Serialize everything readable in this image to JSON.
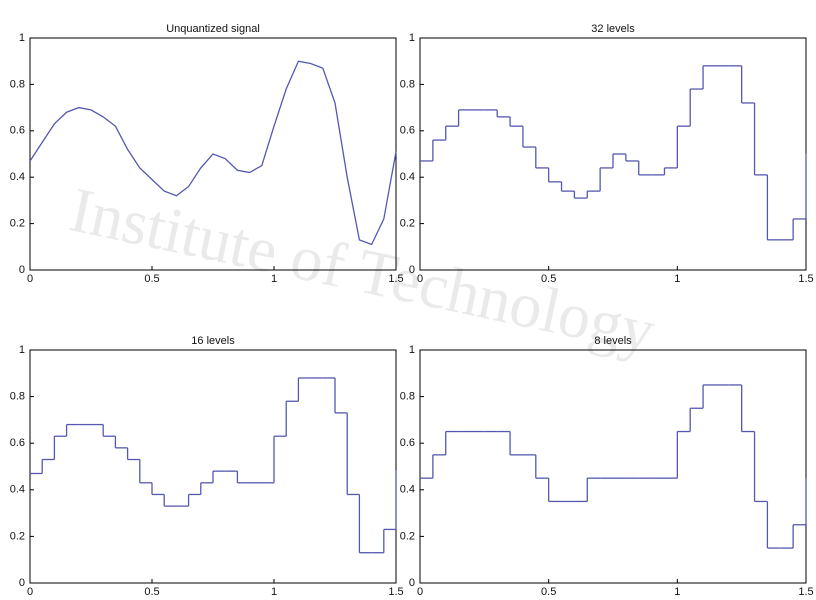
{
  "watermark": "Institute of Technology",
  "chart_data": [
    {
      "type": "line",
      "title": "Unquantized signal",
      "color": "#5558b0",
      "x": [
        0,
        0.05,
        0.1,
        0.15,
        0.2,
        0.25,
        0.3,
        0.35,
        0.4,
        0.45,
        0.5,
        0.55,
        0.6,
        0.65,
        0.7,
        0.75,
        0.8,
        0.85,
        0.9,
        0.95,
        1,
        1.05,
        1.1,
        1.15,
        1.2,
        1.25,
        1.3,
        1.35,
        1.4,
        1.45,
        1.5
      ],
      "values": [
        0.47,
        0.55,
        0.63,
        0.68,
        0.7,
        0.69,
        0.66,
        0.62,
        0.52,
        0.44,
        0.39,
        0.34,
        0.32,
        0.36,
        0.44,
        0.5,
        0.48,
        0.43,
        0.42,
        0.45,
        0.62,
        0.78,
        0.9,
        0.89,
        0.87,
        0.72,
        0.4,
        0.13,
        0.11,
        0.22,
        0.51
      ],
      "xlim": [
        0,
        1.5
      ],
      "ylim": [
        0,
        1
      ],
      "xticks": [
        0,
        0.5,
        1,
        1.5
      ],
      "yticks": [
        0,
        0.2,
        0.4,
        0.6,
        0.8,
        1
      ]
    },
    {
      "type": "step",
      "title": "32 levels",
      "color": "#5558b0",
      "x": [
        0,
        0.05,
        0.1,
        0.15,
        0.2,
        0.25,
        0.3,
        0.35,
        0.4,
        0.45,
        0.5,
        0.55,
        0.6,
        0.65,
        0.7,
        0.75,
        0.8,
        0.85,
        0.9,
        0.95,
        1,
        1.05,
        1.1,
        1.15,
        1.2,
        1.25,
        1.3,
        1.35,
        1.4,
        1.45,
        1.5
      ],
      "values": [
        0.47,
        0.56,
        0.62,
        0.69,
        0.69,
        0.69,
        0.66,
        0.62,
        0.53,
        0.44,
        0.38,
        0.34,
        0.31,
        0.34,
        0.44,
        0.5,
        0.47,
        0.41,
        0.41,
        0.44,
        0.62,
        0.78,
        0.88,
        0.88,
        0.88,
        0.72,
        0.41,
        0.13,
        0.13,
        0.22,
        0.5
      ],
      "xlim": [
        0,
        1.5
      ],
      "ylim": [
        0,
        1
      ],
      "xticks": [
        0,
        0.5,
        1,
        1.5
      ],
      "yticks": [
        0,
        0.2,
        0.4,
        0.6,
        0.8,
        1
      ]
    },
    {
      "type": "step",
      "title": "16 levels",
      "color": "#5558b0",
      "x": [
        0,
        0.05,
        0.1,
        0.15,
        0.2,
        0.25,
        0.3,
        0.35,
        0.4,
        0.45,
        0.5,
        0.55,
        0.6,
        0.65,
        0.7,
        0.75,
        0.8,
        0.85,
        0.9,
        0.95,
        1,
        1.05,
        1.1,
        1.15,
        1.2,
        1.25,
        1.3,
        1.35,
        1.4,
        1.45,
        1.5
      ],
      "values": [
        0.47,
        0.53,
        0.63,
        0.68,
        0.68,
        0.68,
        0.63,
        0.58,
        0.53,
        0.43,
        0.38,
        0.33,
        0.33,
        0.38,
        0.43,
        0.48,
        0.48,
        0.43,
        0.43,
        0.43,
        0.63,
        0.78,
        0.88,
        0.88,
        0.88,
        0.73,
        0.38,
        0.13,
        0.13,
        0.23,
        0.48
      ],
      "xlim": [
        0,
        1.5
      ],
      "ylim": [
        0,
        1
      ],
      "xticks": [
        0,
        0.5,
        1,
        1.5
      ],
      "yticks": [
        0,
        0.2,
        0.4,
        0.6,
        0.8,
        1
      ]
    },
    {
      "type": "step",
      "title": "8 levels",
      "color": "#5558b0",
      "x": [
        0,
        0.05,
        0.1,
        0.15,
        0.2,
        0.25,
        0.3,
        0.35,
        0.4,
        0.45,
        0.5,
        0.55,
        0.6,
        0.65,
        0.7,
        0.75,
        0.8,
        0.85,
        0.9,
        0.95,
        1,
        1.05,
        1.1,
        1.15,
        1.2,
        1.25,
        1.3,
        1.35,
        1.4,
        1.45,
        1.5
      ],
      "values": [
        0.45,
        0.55,
        0.65,
        0.65,
        0.65,
        0.65,
        0.65,
        0.55,
        0.55,
        0.45,
        0.35,
        0.35,
        0.35,
        0.45,
        0.45,
        0.45,
        0.45,
        0.45,
        0.45,
        0.45,
        0.65,
        0.75,
        0.85,
        0.85,
        0.85,
        0.65,
        0.35,
        0.15,
        0.15,
        0.25,
        0.45
      ],
      "xlim": [
        0,
        1.5
      ],
      "ylim": [
        0,
        1
      ],
      "xticks": [
        0,
        0.5,
        1,
        1.5
      ],
      "yticks": [
        0,
        0.2,
        0.4,
        0.6,
        0.8,
        1
      ]
    }
  ]
}
